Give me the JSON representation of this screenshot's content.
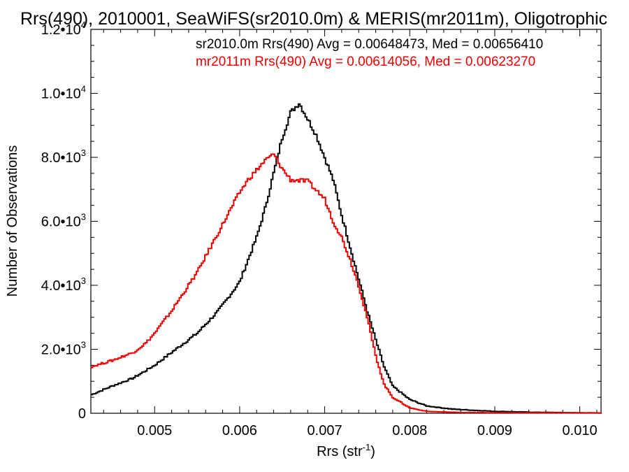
{
  "chart_data": {
    "type": "line",
    "title": "Rrs(490), 2010001, SeaWiFS(sr2010.0m) & MERIS(mr2011m), Oligotrophic",
    "xlabel": "Rrs (str",
    "xlabel_sup": "-1",
    "xlabel_close": ")",
    "ylabel": "Number of Observations",
    "xlim": [
      0.00425,
      0.01025
    ],
    "ylim": [
      0,
      12000
    ],
    "x_ticks": [
      {
        "value": 0.005,
        "label": "0.005"
      },
      {
        "value": 0.006,
        "label": "0.006"
      },
      {
        "value": 0.007,
        "label": "0.007"
      },
      {
        "value": 0.008,
        "label": "0.008"
      },
      {
        "value": 0.009,
        "label": "0.009"
      },
      {
        "value": 0.01,
        "label": "0.010"
      }
    ],
    "y_ticks": [
      {
        "value": 0,
        "mant": "0",
        "exp": ""
      },
      {
        "value": 2000,
        "mant": "2.0•10",
        "exp": "3"
      },
      {
        "value": 4000,
        "mant": "4.0•10",
        "exp": "3"
      },
      {
        "value": 6000,
        "mant": "6.0•10",
        "exp": "3"
      },
      {
        "value": 8000,
        "mant": "8.0•10",
        "exp": "3"
      },
      {
        "value": 10000,
        "mant": "1.0•10",
        "exp": "4"
      },
      {
        "value": 12000,
        "mant": "1.2•10",
        "exp": "4"
      }
    ],
    "annotations": [
      {
        "text": "sr2010.0m Rrs(490) Avg = 0.00648473, Med = 0.00656410",
        "color": "#000000"
      },
      {
        "text": "mr2011m Rrs(490) Avg = 0.00614056, Med = 0.00623270",
        "color": "#ee0000"
      }
    ],
    "series": [
      {
        "color": "#000000",
        "points": [
          [
            0.00425,
            570
          ],
          [
            0.0045,
            850
          ],
          [
            0.00475,
            1100
          ],
          [
            0.005,
            1500
          ],
          [
            0.00525,
            2000
          ],
          [
            0.0055,
            2500
          ],
          [
            0.00575,
            3200
          ],
          [
            0.006,
            4100
          ],
          [
            0.0062,
            5500
          ],
          [
            0.0063,
            6400
          ],
          [
            0.0064,
            7500
          ],
          [
            0.0065,
            8600
          ],
          [
            0.0066,
            9400
          ],
          [
            0.0067,
            9700
          ],
          [
            0.0068,
            9200
          ],
          [
            0.0069,
            8700
          ],
          [
            0.007,
            8000
          ],
          [
            0.0071,
            7300
          ],
          [
            0.0072,
            6200
          ],
          [
            0.0073,
            5200
          ],
          [
            0.0074,
            4200
          ],
          [
            0.0075,
            3200
          ],
          [
            0.0076,
            2300
          ],
          [
            0.0077,
            1450
          ],
          [
            0.0078,
            850
          ],
          [
            0.008,
            430
          ],
          [
            0.0082,
            230
          ],
          [
            0.0085,
            130
          ],
          [
            0.009,
            60
          ],
          [
            0.0095,
            30
          ],
          [
            0.01,
            15
          ],
          [
            0.01025,
            10
          ]
        ]
      },
      {
        "color": "#ee0000",
        "points": [
          [
            0.00425,
            1450
          ],
          [
            0.0045,
            1650
          ],
          [
            0.00475,
            1900
          ],
          [
            0.0049,
            2200
          ],
          [
            0.005,
            2500
          ],
          [
            0.0052,
            3200
          ],
          [
            0.0055,
            4400
          ],
          [
            0.0057,
            5400
          ],
          [
            0.0059,
            6400
          ],
          [
            0.006,
            6900
          ],
          [
            0.0061,
            7300
          ],
          [
            0.0062,
            7600
          ],
          [
            0.0063,
            7900
          ],
          [
            0.0064,
            8100
          ],
          [
            0.0065,
            7650
          ],
          [
            0.0066,
            7300
          ],
          [
            0.0068,
            7250
          ],
          [
            0.007,
            6700
          ],
          [
            0.0071,
            6000
          ],
          [
            0.0072,
            5500
          ],
          [
            0.0073,
            4800
          ],
          [
            0.0074,
            4000
          ],
          [
            0.0075,
            3000
          ],
          [
            0.0076,
            1800
          ],
          [
            0.0077,
            900
          ],
          [
            0.0078,
            500
          ],
          [
            0.008,
            170
          ],
          [
            0.0082,
            60
          ],
          [
            0.0085,
            30
          ],
          [
            0.009,
            15
          ],
          [
            0.01025,
            10
          ]
        ]
      }
    ]
  }
}
